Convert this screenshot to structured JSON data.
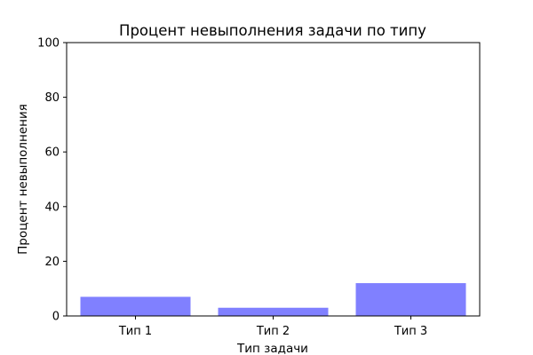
{
  "chart_data": {
    "type": "bar",
    "title": "Процент невыполнения задачи по типу",
    "xlabel": "Тип задачи",
    "ylabel": "Процент невыполнения",
    "categories": [
      "Тип 1",
      "Тип 2",
      "Тип 3"
    ],
    "values": [
      7,
      3,
      12
    ],
    "ylim": [
      0,
      100
    ],
    "yticks": [
      "0",
      "20",
      "40",
      "60",
      "80",
      "100"
    ],
    "grid": false,
    "bar_color": "#8080ff"
  }
}
